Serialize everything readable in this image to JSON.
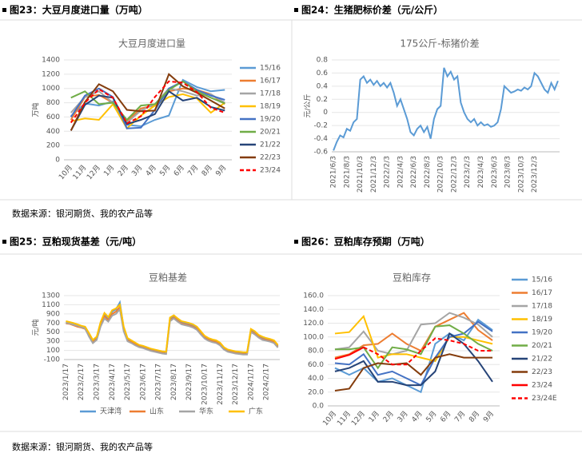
{
  "captions": [
    "图23：大豆月度进口量（万吨）",
    "图24：生猪肥标价差（元/公斤）",
    "图25：豆粕现货基差（元/吨）",
    "图26：豆粕库存预期（万吨）"
  ],
  "sources": [
    "数据来源：银河期货、我的农产品等",
    "数据来源：银河期货、我的农产品等"
  ],
  "chart_data": [
    {
      "type": "line",
      "title": "大豆月度进口量",
      "y_label": "万吨",
      "legend": "right",
      "categories": [
        "10月",
        "11月",
        "12月",
        "1月",
        "2月",
        "3月",
        "4月",
        "5月",
        "6月",
        "7月",
        "8月",
        "9月"
      ],
      "ylim": [
        0,
        1400
      ],
      "yticks": [
        0,
        200,
        400,
        600,
        800,
        1000,
        1200,
        1400
      ],
      "series": [
        {
          "name": "15/16",
          "color": "#5b9bd5",
          "values": [
            610,
            790,
            760,
            820,
            490,
            470,
            560,
            620,
            1120,
            1020,
            960,
            980
          ]
        },
        {
          "name": "16/17",
          "color": "#ed7d31",
          "values": [
            560,
            880,
            910,
            800,
            540,
            720,
            760,
            960,
            1000,
            980,
            920,
            780
          ]
        },
        {
          "name": "17/18",
          "color": "#a5a5a5",
          "values": [
            660,
            880,
            960,
            800,
            520,
            690,
            780,
            1000,
            960,
            900,
            920,
            800
          ]
        },
        {
          "name": "18/19",
          "color": "#ffc000",
          "values": [
            540,
            580,
            560,
            780,
            440,
            620,
            760,
            880,
            920,
            860,
            660,
            800
          ]
        },
        {
          "name": "19/20",
          "color": "#4472c4",
          "values": [
            600,
            900,
            1000,
            880,
            440,
            450,
            700,
            1000,
            1100,
            980,
            900,
            840
          ]
        },
        {
          "name": "20/21",
          "color": "#70ad47",
          "values": [
            870,
            960,
            780,
            800,
            560,
            760,
            780,
            980,
            1100,
            960,
            870,
            790
          ]
        },
        {
          "name": "21/22",
          "color": "#264478",
          "values": [
            410,
            770,
            900,
            870,
            500,
            560,
            640,
            960,
            830,
            870,
            740,
            690
          ]
        },
        {
          "name": "22/23",
          "color": "#843c0c",
          "values": [
            410,
            810,
            1060,
            960,
            700,
            680,
            690,
            1200,
            1030,
            940,
            830,
            720
          ]
        },
        {
          "name": "23/24",
          "color": "#ff0000",
          "dash": true,
          "values": [
            520,
            800,
            990,
            870,
            510,
            610,
            880,
            1100,
            1080,
            950,
            730,
            660
          ]
        }
      ]
    },
    {
      "type": "line",
      "title": "175公斤-标猪价差",
      "y_label": "元/公斤",
      "rotate_x": true,
      "categories": [
        "2021/6/3",
        null,
        null,
        null,
        "2021/8/3",
        null,
        null,
        null,
        "2021/10/3",
        null,
        null,
        null,
        "2021/12/3",
        null,
        null,
        null,
        "2022/2/3",
        null,
        null,
        null,
        "2022/4/3",
        null,
        null,
        null,
        "2022/6/3",
        null,
        null,
        null,
        "2022/8/3",
        null,
        null,
        null,
        "2022/10/3",
        null,
        null,
        null,
        "2022/12/3",
        null,
        null,
        null,
        "2023/2/3",
        null,
        null,
        null,
        "2023/4/3",
        null,
        null,
        null,
        "2023/6/3",
        null,
        null,
        null,
        "2023/8/3",
        null,
        null,
        null,
        "2023/10/3",
        null,
        null,
        null,
        "2023/12/3",
        null,
        null,
        null,
        null,
        null,
        null,
        null
      ],
      "ylim": [
        -0.6,
        0.8
      ],
      "yticks": [
        -0.6,
        -0.4,
        -0.2,
        0,
        0.2,
        0.4,
        0.6,
        0.8
      ],
      "series": [
        {
          "color": "#5b9bd5",
          "values": [
            -0.58,
            -0.45,
            -0.35,
            -0.38,
            -0.25,
            -0.28,
            -0.15,
            -0.1,
            0.5,
            0.55,
            0.45,
            0.5,
            0.42,
            0.48,
            0.4,
            0.45,
            0.38,
            0.45,
            0.3,
            0.1,
            0.2,
            0.05,
            -0.1,
            -0.3,
            -0.35,
            -0.25,
            -0.2,
            -0.3,
            -0.22,
            -0.4,
            -0.1,
            0.05,
            0.1,
            0.68,
            0.55,
            0.62,
            0.5,
            0.55,
            0.15,
            0.0,
            -0.1,
            -0.15,
            -0.1,
            -0.2,
            -0.15,
            -0.2,
            -0.18,
            -0.22,
            -0.2,
            -0.15,
            0.05,
            0.4,
            0.35,
            0.3,
            0.32,
            0.35,
            0.33,
            0.38,
            0.35,
            0.4,
            0.6,
            0.55,
            0.45,
            0.35,
            0.3,
            0.45,
            0.35,
            0.48
          ]
        }
      ]
    },
    {
      "type": "line",
      "title": "豆粕基差",
      "y_label": "元/吨",
      "rotate_x": true,
      "legend": "bottom",
      "categories": [
        "2023/1/17",
        null,
        null,
        null,
        "2023/2/17",
        null,
        null,
        null,
        "2023/3/17",
        null,
        null,
        null,
        "2023/4/17",
        null,
        null,
        null,
        "2023/5/17",
        null,
        null,
        null,
        "2023/6/17",
        null,
        null,
        null,
        "2023/7/17",
        null,
        null,
        null,
        "2023/8/17",
        null,
        null,
        null,
        "2023/9/17",
        null,
        null,
        null,
        "2023/10/17",
        null,
        null,
        null,
        "2023/11/17",
        null,
        null,
        null,
        "2023/12/17",
        null,
        null,
        null,
        "2024/1/17",
        null,
        null,
        null,
        "2024/2/17",
        null,
        null,
        null
      ],
      "ylim": [
        -100,
        1300
      ],
      "yticks": [
        -100,
        100,
        300,
        500,
        700,
        900,
        1100,
        1300
      ],
      "series": [
        {
          "name": "天津湾",
          "color": "#5b9bd5",
          "values": [
            720,
            700,
            680,
            650,
            620,
            600,
            450,
            300,
            380,
            700,
            900,
            800,
            950,
            1000,
            1150,
            600,
            350,
            300,
            250,
            200,
            180,
            150,
            120,
            100,
            80,
            60,
            50,
            800,
            850,
            780,
            720,
            700,
            680,
            650,
            600,
            500,
            400,
            350,
            320,
            300,
            250,
            150,
            100,
            80,
            60,
            50,
            40,
            40,
            550,
            500,
            420,
            380,
            350,
            330,
            300,
            200
          ]
        },
        {
          "name": "山东",
          "color": "#ed7d31",
          "values": [
            690,
            680,
            650,
            620,
            600,
            570,
            420,
            280,
            350,
            650,
            850,
            760,
            900,
            950,
            1050,
            560,
            320,
            280,
            230,
            180,
            160,
            130,
            100,
            80,
            60,
            40,
            30,
            760,
            820,
            750,
            690,
            670,
            650,
            620,
            570,
            470,
            380,
            330,
            300,
            280,
            230,
            130,
            80,
            60,
            40,
            30,
            20,
            20,
            520,
            470,
            400,
            350,
            330,
            310,
            280,
            180
          ]
        },
        {
          "name": "华东",
          "color": "#a5a5a5",
          "values": [
            700,
            690,
            660,
            640,
            610,
            580,
            400,
            260,
            330,
            620,
            800,
            730,
            860,
            900,
            1000,
            520,
            300,
            260,
            210,
            170,
            150,
            120,
            90,
            70,
            50,
            30,
            20,
            740,
            800,
            730,
            670,
            650,
            630,
            600,
            550,
            450,
            360,
            310,
            280,
            260,
            210,
            120,
            70,
            50,
            30,
            20,
            10,
            10,
            500,
            450,
            380,
            330,
            310,
            290,
            260,
            160
          ]
        },
        {
          "name": "广东",
          "color": "#ffc000",
          "values": [
            740,
            720,
            700,
            670,
            640,
            620,
            480,
            330,
            400,
            720,
            920,
            830,
            980,
            1020,
            1100,
            620,
            370,
            320,
            270,
            220,
            200,
            170,
            140,
            120,
            100,
            80,
            70,
            820,
            870,
            800,
            740,
            720,
            700,
            670,
            620,
            520,
            420,
            370,
            340,
            320,
            270,
            170,
            120,
            100,
            80,
            70,
            60,
            60,
            570,
            520,
            440,
            400,
            370,
            350,
            320,
            220
          ]
        }
      ]
    },
    {
      "type": "line",
      "title": "豆粕库存",
      "legend": "right",
      "categories": [
        "10月",
        "11月",
        "12月",
        "1月",
        "2月",
        "3月",
        "4月",
        "5月",
        "6月",
        "7月",
        "8月",
        "9月"
      ],
      "ylim": [
        0,
        160
      ],
      "yticks": [
        {
          "value": 0,
          "label": "0.0"
        },
        {
          "value": 20,
          "label": "20.0"
        },
        {
          "value": 40,
          "label": "40.0"
        },
        {
          "value": 60,
          "label": "60.0"
        },
        {
          "value": 80,
          "label": "80.0"
        },
        {
          "value": 100,
          "label": "100.0"
        },
        {
          "value": 120,
          "label": "120.0"
        },
        {
          "value": 140,
          "label": "140.0"
        },
        {
          "value": 160,
          "label": "160.0"
        }
      ],
      "series": [
        {
          "name": "15/16",
          "color": "#5b9bd5",
          "values": [
            55,
            45,
            55,
            35,
            40,
            30,
            20,
            90,
            105,
            95,
            125,
            110
          ]
        },
        {
          "name": "16/17",
          "color": "#ed7d31",
          "values": [
            70,
            75,
            88,
            90,
            105,
            90,
            80,
            115,
            125,
            135,
            110,
            95
          ]
        },
        {
          "name": "17/18",
          "color": "#a5a5a5",
          "values": [
            82,
            85,
            108,
            80,
            75,
            80,
            118,
            120,
            135,
            128,
            118,
            100
          ]
        },
        {
          "name": "18/19",
          "color": "#ffc000",
          "values": [
            105,
            107,
            130,
            70,
            75,
            75,
            70,
            65,
            100,
            100,
            95,
            90
          ]
        },
        {
          "name": "19/20",
          "color": "#4472c4",
          "values": [
            62,
            60,
            75,
            45,
            50,
            40,
            30,
            70,
            100,
            105,
            122,
            108
          ]
        },
        {
          "name": "20/21",
          "color": "#70ad47",
          "values": [
            82,
            82,
            85,
            55,
            85,
            82,
            75,
            115,
            117,
            105,
            90,
            80
          ]
        },
        {
          "name": "21/22",
          "color": "#264478",
          "values": [
            50,
            55,
            65,
            35,
            35,
            30,
            30,
            50,
            105,
            90,
            65,
            35
          ]
        },
        {
          "name": "22/23",
          "color": "#843c0c",
          "values": [
            22,
            25,
            55,
            62,
            60,
            62,
            45,
            70,
            75,
            70,
            70,
            70
          ]
        },
        {
          "name": "23/24",
          "color": "#ff0000",
          "values": [
            68,
            74,
            85,
            null,
            null,
            null,
            null,
            null,
            null,
            null,
            null,
            null
          ]
        },
        {
          "name": "23/24E",
          "color": "#ff0000",
          "dash": true,
          "values": [
            null,
            null,
            85,
            75,
            60,
            60,
            80,
            98,
            95,
            90,
            80,
            80
          ]
        }
      ]
    }
  ]
}
